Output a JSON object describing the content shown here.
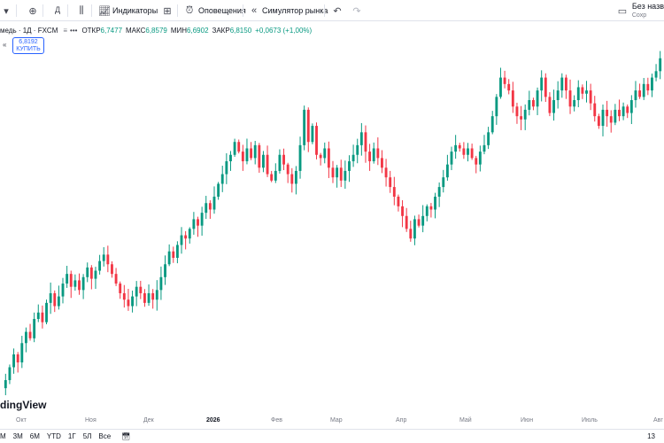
{
  "toolbar": {
    "indicators_label": "Индикаторы",
    "alerts_label": "Оповещения",
    "simulator_label": "Симулятор рынка",
    "layout_title": "Без назв",
    "layout_subtitle": "Сохр"
  },
  "legend": {
    "symbol": "медь · 1Д · FXCM",
    "open_label": "ОТКР",
    "open_value": "6,7477",
    "high_label": "МАКС",
    "high_value": "6,8579",
    "low_label": "МИН",
    "low_value": "6,6902",
    "close_label": "ЗАКР",
    "close_value": "6,8150",
    "change": "+0,0673 (+1,00%)",
    "buy_price": "6,8192",
    "buy_label": "КУПИТЬ"
  },
  "watermark": "dingView",
  "xaxis": [
    "Окт",
    "Ноя",
    "Дек",
    "2026",
    "Фев",
    "Мар",
    "Апр",
    "Май",
    "Июн",
    "Июль",
    "Авг"
  ],
  "bottom": {
    "ranges": [
      "М",
      "3М",
      "6М",
      "YTD",
      "1Г",
      "5Л",
      "Все"
    ],
    "time": "13"
  },
  "colors": {
    "up": "#089981",
    "down": "#f23645",
    "accent": "#2962ff"
  },
  "chart_data": {
    "type": "candlestick",
    "series": [
      {
        "name": "",
        "closes": [
          4.82,
          4.9,
          4.98,
          4.93,
          5.05,
          5.12,
          5.08,
          5.2,
          5.24,
          5.18,
          5.3,
          5.36,
          5.28,
          5.34,
          5.42,
          5.48,
          5.4,
          5.44,
          5.38,
          5.46,
          5.52,
          5.45,
          5.5,
          5.56,
          5.6,
          5.54,
          5.48,
          5.42,
          5.36,
          5.32,
          5.28,
          5.34,
          5.4,
          5.36,
          5.3,
          5.36,
          5.32,
          5.38,
          5.46,
          5.54,
          5.62,
          5.58,
          5.66,
          5.72,
          5.7,
          5.76,
          5.82,
          5.78,
          5.86,
          5.92,
          5.88,
          5.96,
          6.04,
          6.1,
          6.18,
          6.22,
          6.3,
          6.24,
          6.18,
          6.26,
          6.2,
          6.28,
          6.14,
          6.22,
          6.1,
          6.06,
          6.12,
          6.22,
          6.16,
          6.1,
          6.04,
          6.12,
          6.28,
          6.5,
          6.3,
          6.4,
          6.22,
          6.2,
          6.26,
          6.14,
          6.08,
          6.14,
          6.06,
          6.12,
          6.18,
          6.22,
          6.28,
          6.36,
          6.24,
          6.18,
          6.26,
          6.2,
          6.14,
          6.08,
          6.02,
          5.96,
          5.9,
          5.84,
          5.76,
          5.7,
          5.82,
          5.78,
          5.84,
          5.9,
          5.88,
          5.96,
          6.02,
          6.08,
          6.16,
          6.24,
          6.28,
          6.26,
          6.22,
          6.26,
          6.2,
          6.16,
          6.24,
          6.28,
          6.36,
          6.46,
          6.58,
          6.7,
          6.66,
          6.62,
          6.52,
          6.46,
          6.44,
          6.5,
          6.56,
          6.52,
          6.62,
          6.7,
          6.58,
          6.48,
          6.56,
          6.62,
          6.7,
          6.62,
          6.52,
          6.56,
          6.64,
          6.6,
          6.62,
          6.54,
          6.46,
          6.4,
          6.5,
          6.46,
          6.42,
          6.5,
          6.46,
          6.52,
          6.48,
          6.56,
          6.62,
          6.58,
          6.66,
          6.62,
          6.7,
          6.74,
          6.82
        ]
      }
    ],
    "last_price_line": 6.8192
  }
}
